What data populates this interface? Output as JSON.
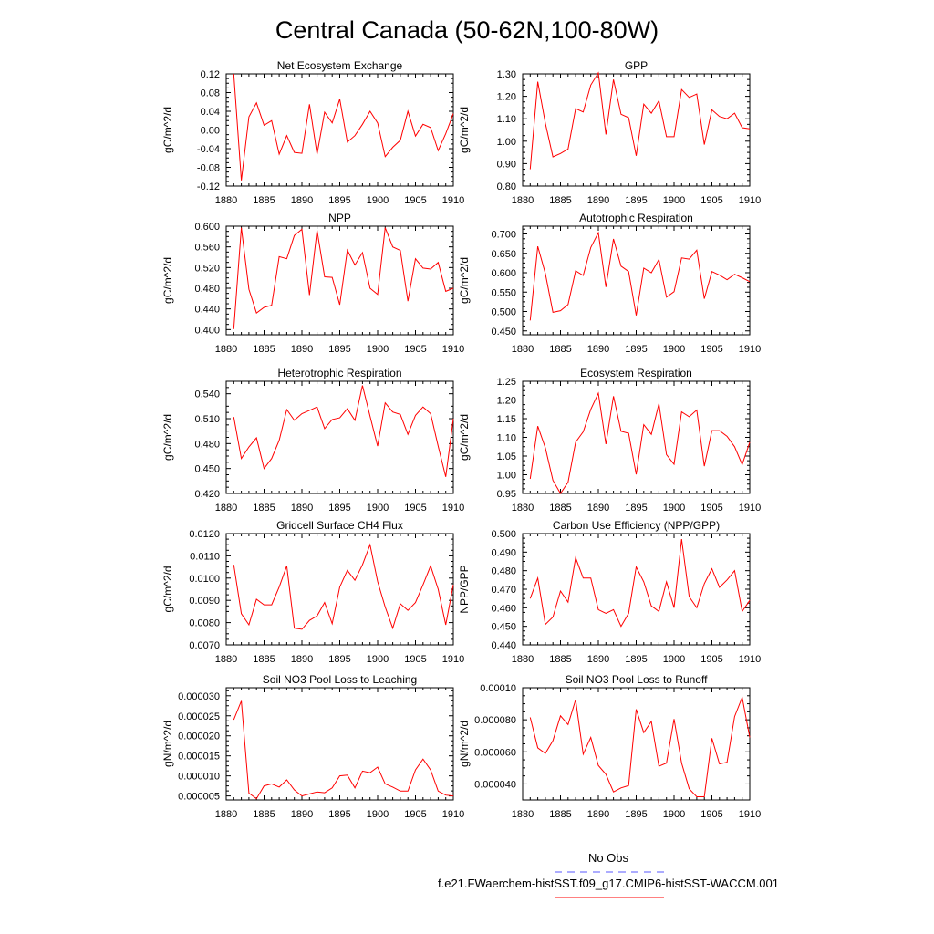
{
  "title": "Central Canada (50-62N,100-80W)",
  "legend": {
    "entries": [
      {
        "label": "No Obs",
        "color": "#5a5aff",
        "style": "dashed"
      },
      {
        "label": "f.e21.FWaerchem-histSST.f09_g17.CMIP6-histSST-WACCM.001",
        "color": "#ff0000",
        "style": "solid"
      }
    ]
  },
  "chart_data": [
    {
      "type": "line",
      "title": "Net Ecosystem Exchange",
      "ylabel": "gC/m^2/d",
      "xlim": [
        1880,
        1910
      ],
      "xticks": [
        "1880",
        "1885",
        "1890",
        "1895",
        "1900",
        "1905",
        "1910"
      ],
      "ylim": [
        -0.12,
        0.12
      ],
      "yticks": [
        "-0.12",
        "-0.08",
        "-0.04",
        "0.00",
        "0.04",
        "0.08",
        "0.12"
      ],
      "series": [
        {
          "color": "#ff0000",
          "x": [
            1881,
            1882,
            1883,
            1884,
            1885,
            1886,
            1887,
            1888,
            1889,
            1890,
            1891,
            1892,
            1893,
            1894,
            1895,
            1896,
            1897,
            1898,
            1899,
            1900,
            1901,
            1902,
            1903,
            1904,
            1905,
            1906,
            1907,
            1908,
            1909,
            1910
          ],
          "y": [
            0.12,
            -0.108,
            0.028,
            0.058,
            0.01,
            0.02,
            -0.052,
            -0.012,
            -0.048,
            -0.05,
            0.055,
            -0.052,
            0.038,
            0.015,
            0.066,
            -0.026,
            -0.012,
            0.012,
            0.04,
            0.015,
            -0.057,
            -0.037,
            -0.022,
            0.04,
            -0.013,
            0.012,
            0.005,
            -0.044,
            -0.008,
            0.035
          ]
        }
      ]
    },
    {
      "type": "line",
      "title": "GPP",
      "ylabel": "gC/m^2/d",
      "xlim": [
        1880,
        1910
      ],
      "xticks": [
        "1880",
        "1885",
        "1890",
        "1895",
        "1900",
        "1905",
        "1910"
      ],
      "ylim": [
        0.8,
        1.3
      ],
      "yticks": [
        "0.80",
        "0.90",
        "1.00",
        "1.10",
        "1.20",
        "1.30"
      ],
      "series": [
        {
          "color": "#ff0000",
          "x": [
            1881,
            1882,
            1883,
            1884,
            1885,
            1886,
            1887,
            1888,
            1889,
            1890,
            1891,
            1892,
            1893,
            1894,
            1895,
            1896,
            1897,
            1898,
            1899,
            1900,
            1901,
            1902,
            1903,
            1904,
            1905,
            1906,
            1907,
            1908,
            1909,
            1910
          ],
          "y": [
            0.875,
            1.265,
            1.08,
            0.93,
            0.945,
            0.965,
            1.145,
            1.13,
            1.25,
            1.305,
            1.03,
            1.275,
            1.12,
            1.105,
            0.935,
            1.165,
            1.125,
            1.18,
            1.02,
            1.02,
            1.23,
            1.195,
            1.21,
            0.985,
            1.14,
            1.11,
            1.1,
            1.125,
            1.06,
            1.055
          ]
        }
      ]
    },
    {
      "type": "line",
      "title": "NPP",
      "ylabel": "gC/m^2/d",
      "xlim": [
        1880,
        1910
      ],
      "xticks": [
        "1880",
        "1885",
        "1890",
        "1895",
        "1900",
        "1905",
        "1910"
      ],
      "ylim": [
        0.39,
        0.6
      ],
      "yticks": [
        "0.400",
        "0.440",
        "0.480",
        "0.520",
        "0.560",
        "0.600"
      ],
      "series": [
        {
          "color": "#ff0000",
          "x": [
            1881,
            1882,
            1883,
            1884,
            1885,
            1886,
            1887,
            1888,
            1889,
            1890,
            1891,
            1892,
            1893,
            1894,
            1895,
            1896,
            1897,
            1898,
            1899,
            1900,
            1901,
            1902,
            1903,
            1904,
            1905,
            1906,
            1907,
            1908,
            1909,
            1910
          ],
          "y": [
            0.401,
            0.597,
            0.478,
            0.432,
            0.443,
            0.447,
            0.541,
            0.537,
            0.582,
            0.594,
            0.467,
            0.592,
            0.502,
            0.501,
            0.448,
            0.554,
            0.525,
            0.549,
            0.48,
            0.468,
            0.597,
            0.56,
            0.553,
            0.455,
            0.537,
            0.519,
            0.517,
            0.53,
            0.474,
            0.48
          ]
        }
      ]
    },
    {
      "type": "line",
      "title": "Autotrophic Respiration",
      "ylabel": "gC/m^2/d",
      "xlim": [
        1880,
        1910
      ],
      "xticks": [
        "1880",
        "1885",
        "1890",
        "1895",
        "1900",
        "1905",
        "1910"
      ],
      "ylim": [
        0.44,
        0.72
      ],
      "yticks": [
        "0.450",
        "0.500",
        "0.550",
        "0.600",
        "0.650",
        "0.700"
      ],
      "series": [
        {
          "color": "#ff0000",
          "x": [
            1881,
            1882,
            1883,
            1884,
            1885,
            1886,
            1887,
            1888,
            1889,
            1890,
            1891,
            1892,
            1893,
            1894,
            1895,
            1896,
            1897,
            1898,
            1899,
            1900,
            1901,
            1902,
            1903,
            1904,
            1905,
            1906,
            1907,
            1908,
            1909,
            1910
          ],
          "y": [
            0.477,
            0.668,
            0.598,
            0.498,
            0.502,
            0.518,
            0.605,
            0.593,
            0.665,
            0.703,
            0.563,
            0.687,
            0.617,
            0.603,
            0.49,
            0.612,
            0.6,
            0.634,
            0.537,
            0.551,
            0.638,
            0.635,
            0.658,
            0.533,
            0.603,
            0.594,
            0.582,
            0.596,
            0.587,
            0.577
          ]
        }
      ]
    },
    {
      "type": "line",
      "title": "Heterotrophic Respiration",
      "ylabel": "gC/m^2/d",
      "xlim": [
        1880,
        1910
      ],
      "xticks": [
        "1880",
        "1885",
        "1890",
        "1895",
        "1900",
        "1905",
        "1910"
      ],
      "ylim": [
        0.42,
        0.555
      ],
      "yticks": [
        "0.420",
        "0.450",
        "0.480",
        "0.510",
        "0.540"
      ],
      "series": [
        {
          "color": "#ff0000",
          "x": [
            1881,
            1882,
            1883,
            1884,
            1885,
            1886,
            1887,
            1888,
            1889,
            1890,
            1891,
            1892,
            1893,
            1894,
            1895,
            1896,
            1897,
            1898,
            1899,
            1900,
            1901,
            1902,
            1903,
            1904,
            1905,
            1906,
            1907,
            1908,
            1909,
            1910
          ],
          "y": [
            0.512,
            0.462,
            0.476,
            0.487,
            0.45,
            0.462,
            0.484,
            0.521,
            0.508,
            0.516,
            0.52,
            0.524,
            0.498,
            0.509,
            0.511,
            0.522,
            0.508,
            0.55,
            0.513,
            0.477,
            0.529,
            0.518,
            0.515,
            0.491,
            0.514,
            0.524,
            0.516,
            0.477,
            0.44,
            0.51
          ]
        }
      ]
    },
    {
      "type": "line",
      "title": "Ecosystem Respiration",
      "ylabel": "gC/m^2/d",
      "xlim": [
        1880,
        1910
      ],
      "xticks": [
        "1880",
        "1885",
        "1890",
        "1895",
        "1900",
        "1905",
        "1910"
      ],
      "ylim": [
        0.95,
        1.25
      ],
      "yticks": [
        "0.95",
        "1.00",
        "1.05",
        "1.10",
        "1.15",
        "1.20",
        "1.25"
      ],
      "series": [
        {
          "color": "#ff0000",
          "x": [
            1881,
            1882,
            1883,
            1884,
            1885,
            1886,
            1887,
            1888,
            1889,
            1890,
            1891,
            1892,
            1893,
            1894,
            1895,
            1896,
            1897,
            1898,
            1899,
            1900,
            1901,
            1902,
            1903,
            1904,
            1905,
            1906,
            1907,
            1908,
            1909,
            1910
          ],
          "y": [
            0.989,
            1.13,
            1.072,
            0.985,
            0.95,
            0.98,
            1.087,
            1.115,
            1.175,
            1.218,
            1.082,
            1.21,
            1.116,
            1.111,
            1.001,
            1.134,
            1.108,
            1.19,
            1.054,
            1.028,
            1.168,
            1.155,
            1.173,
            1.023,
            1.118,
            1.118,
            1.103,
            1.075,
            1.027,
            1.087
          ]
        }
      ]
    },
    {
      "type": "line",
      "title": "Gridcell Surface CH4 Flux",
      "ylabel": "gC/m^2/d",
      "xlim": [
        1880,
        1910
      ],
      "xticks": [
        "1880",
        "1885",
        "1890",
        "1895",
        "1900",
        "1905",
        "1910"
      ],
      "ylim": [
        0.007,
        0.012
      ],
      "yticks": [
        "0.0070",
        "0.0080",
        "0.0090",
        "0.0100",
        "0.0110",
        "0.0120"
      ],
      "series": [
        {
          "color": "#ff0000",
          "x": [
            1881,
            1882,
            1883,
            1884,
            1885,
            1886,
            1887,
            1888,
            1889,
            1890,
            1891,
            1892,
            1893,
            1894,
            1895,
            1896,
            1897,
            1898,
            1899,
            1900,
            1901,
            1902,
            1903,
            1904,
            1905,
            1906,
            1907,
            1908,
            1909,
            1910
          ],
          "y": [
            0.0106,
            0.0084,
            0.0079,
            0.00905,
            0.0088,
            0.0088,
            0.0096,
            0.01055,
            0.00775,
            0.0077,
            0.0081,
            0.0083,
            0.0089,
            0.00795,
            0.0096,
            0.01035,
            0.0099,
            0.0106,
            0.0115,
            0.00985,
            0.0087,
            0.00775,
            0.00885,
            0.00855,
            0.0089,
            0.0097,
            0.01055,
            0.0095,
            0.0079,
            0.0097
          ]
        }
      ]
    },
    {
      "type": "line",
      "title": "Carbon Use Efficiency (NPP/GPP)",
      "ylabel": "NPP/GPP",
      "xlim": [
        1880,
        1910
      ],
      "xticks": [
        "1880",
        "1885",
        "1890",
        "1895",
        "1900",
        "1905",
        "1910"
      ],
      "ylim": [
        0.44,
        0.5
      ],
      "yticks": [
        "0.440",
        "0.450",
        "0.460",
        "0.470",
        "0.480",
        "0.490",
        "0.500"
      ],
      "series": [
        {
          "color": "#ff0000",
          "x": [
            1881,
            1882,
            1883,
            1884,
            1885,
            1886,
            1887,
            1888,
            1889,
            1890,
            1891,
            1892,
            1893,
            1894,
            1895,
            1896,
            1897,
            1898,
            1899,
            1900,
            1901,
            1902,
            1903,
            1904,
            1905,
            1906,
            1907,
            1908,
            1909,
            1910
          ],
          "y": [
            0.465,
            0.476,
            0.451,
            0.455,
            0.469,
            0.463,
            0.487,
            0.476,
            0.476,
            0.459,
            0.457,
            0.459,
            0.45,
            0.457,
            0.482,
            0.474,
            0.461,
            0.458,
            0.474,
            0.46,
            0.497,
            0.466,
            0.46,
            0.473,
            0.481,
            0.471,
            0.475,
            0.48,
            0.458,
            0.464
          ]
        }
      ]
    },
    {
      "type": "line",
      "title": "Soil NO3 Pool Loss to Leaching",
      "ylabel": "gN/m^2/d",
      "xlim": [
        1880,
        1910
      ],
      "xticks": [
        "1880",
        "1885",
        "1890",
        "1895",
        "1900",
        "1905",
        "1910"
      ],
      "ylim": [
        4e-06,
        3.2e-05
      ],
      "yticks": [
        "0.000005",
        "0.000010",
        "0.000015",
        "0.000020",
        "0.000025",
        "0.000030"
      ],
      "series": [
        {
          "color": "#ff0000",
          "x": [
            1881,
            1882,
            1883,
            1884,
            1885,
            1886,
            1887,
            1888,
            1889,
            1890,
            1891,
            1892,
            1893,
            1894,
            1895,
            1896,
            1897,
            1898,
            1899,
            1900,
            1901,
            1902,
            1903,
            1904,
            1905,
            1906,
            1907,
            1908,
            1909,
            1910
          ],
          "y": [
            2.4e-05,
            2.87e-05,
            5.7e-06,
            4.3e-06,
            7.5e-06,
            8e-06,
            7.2e-06,
            9e-06,
            6.5e-06,
            5e-06,
            5.5e-06,
            6e-06,
            5.8e-06,
            7e-06,
            1e-05,
            1.02e-05,
            7e-06,
            1.12e-05,
            1.08e-05,
            1.22e-05,
            8e-06,
            7.2e-06,
            6.2e-06,
            6.2e-06,
            1.15e-05,
            1.42e-05,
            1.15e-05,
            6.2e-06,
            5.2e-06,
            5e-06
          ]
        }
      ]
    },
    {
      "type": "line",
      "title": "Soil NO3 Pool Loss to Runoff",
      "ylabel": "gN/m^2/d",
      "xlim": [
        1880,
        1910
      ],
      "xticks": [
        "1880",
        "1885",
        "1890",
        "1895",
        "1900",
        "1905",
        "1910"
      ],
      "ylim": [
        3e-05,
        0.0001
      ],
      "yticks": [
        "0.000040",
        "0.000060",
        "0.000080",
        "0.00010"
      ],
      "series": [
        {
          "color": "#ff0000",
          "x": [
            1881,
            1882,
            1883,
            1884,
            1885,
            1886,
            1887,
            1888,
            1889,
            1890,
            1891,
            1892,
            1893,
            1894,
            1895,
            1896,
            1897,
            1898,
            1899,
            1900,
            1901,
            1902,
            1903,
            1904,
            1905,
            1906,
            1907,
            1908,
            1909,
            1910
          ],
          "y": [
            8.15e-05,
            6.25e-05,
            5.9e-05,
            6.7e-05,
            8.25e-05,
            7.7e-05,
            9.25e-05,
            5.85e-05,
            6.9e-05,
            5.15e-05,
            4.6e-05,
            3.5e-05,
            3.75e-05,
            3.9e-05,
            8.65e-05,
            7.2e-05,
            7.9e-05,
            5.1e-05,
            5.3e-05,
            8.05e-05,
            5.3e-05,
            3.7e-05,
            3.2e-05,
            3.2e-05,
            6.85e-05,
            5.25e-05,
            5.35e-05,
            8.2e-05,
            9.4e-05,
            6.9e-05
          ]
        }
      ]
    }
  ]
}
